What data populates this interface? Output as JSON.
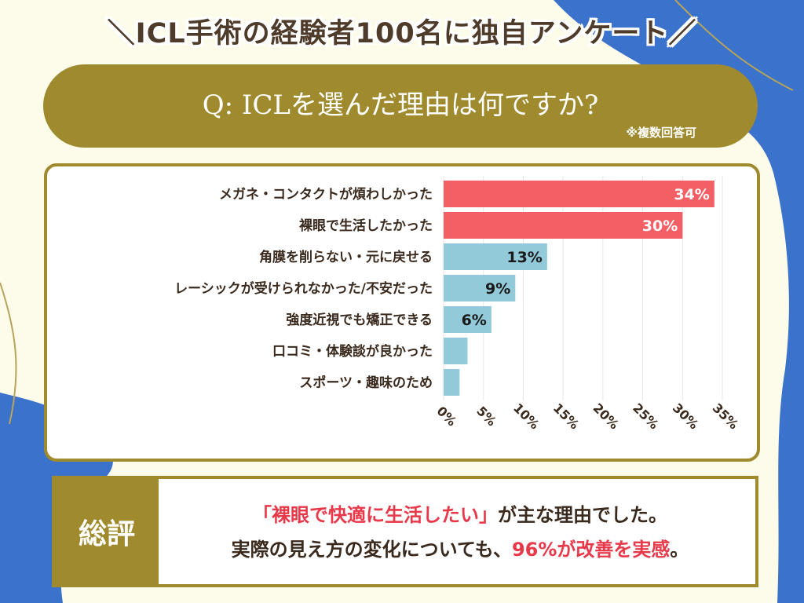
{
  "headline": "＼ICL手術の経験者100名に独自アンケート／",
  "question": "Q:  ICLを選んだ理由は何ですか?",
  "note": "※複数回答可",
  "chart_data": {
    "type": "bar",
    "orientation": "horizontal",
    "categories": [
      "メガネ・コンタクトが煩わしかった",
      "裸眼で生活したかった",
      "角膜を削らない・元に戻せる",
      "レーシックが受けられなかった/不安だった",
      "強度近視でも矯正できる",
      "口コミ・体験談が良かった",
      "スポーツ・趣味のため"
    ],
    "values": [
      34,
      30,
      13,
      9,
      6,
      3,
      2
    ],
    "data_labels": [
      "34%",
      "30%",
      "13%",
      "9%",
      "6%",
      "",
      ""
    ],
    "xlim": [
      0,
      35
    ],
    "x_ticks": [
      "0%",
      "5%",
      "10%",
      "15%",
      "20%",
      "25%",
      "30%",
      "35%"
    ],
    "grid": true,
    "colors": {
      "highlight": "#f35f64",
      "normal": "#92cad9",
      "grid": "#e6e6e6",
      "label_on_highlight": "#ffffff",
      "label_on_normal": "#1a1a1a"
    },
    "highlight_top_n": 2
  },
  "summary": {
    "label": "総評",
    "line1_quote": "「裸眼で快適に生活したい」",
    "line1_rest": "が主な理由でした。",
    "line2_pre": "実際の見え方の変化についても、",
    "line2_highlight": "96%が改善を実感",
    "line2_post": "。"
  },
  "colors": {
    "background": "#fdfbea",
    "accent_gold": "#a08a2e",
    "deco_blue": "#3a72cc",
    "text_brown": "#4e3b2a"
  }
}
